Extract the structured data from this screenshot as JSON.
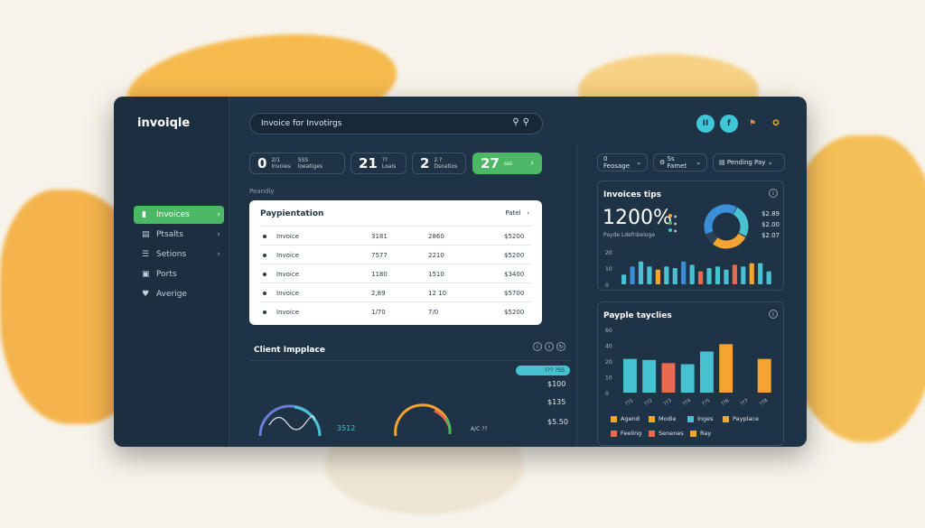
{
  "colors": {
    "accent_green": "#4cb865",
    "cyan": "#48c2d1",
    "orange": "#f6a431",
    "coral": "#ea6a4f",
    "blue": "#3b8fd8",
    "window_bg": "#1f3346"
  },
  "app": {
    "logo": "invoiqle"
  },
  "search": {
    "value": "Invoice for Invotirgs",
    "icon": "search-icon"
  },
  "header_icons": [
    "II",
    "f",
    "⚑",
    "✪"
  ],
  "sidebar": {
    "items": [
      {
        "label": "Invoices",
        "icon": "chart-icon"
      },
      {
        "label": "Ptsalts",
        "icon": "document-icon"
      },
      {
        "label": "Setions",
        "icon": "sliders-icon"
      },
      {
        "label": "Ports",
        "icon": "building-icon"
      },
      {
        "label": "Averige",
        "icon": "pin-icon"
      }
    ]
  },
  "stats": [
    {
      "num": "0",
      "label_a": "2/1",
      "label_b": "Invoies",
      "label_c": "SSS",
      "label_d": "loeatiges"
    },
    {
      "num": "21",
      "label_a": "??",
      "label_b": "Loais"
    },
    {
      "num": "2",
      "label_a": "2 ?",
      "label_b": "Dsoatios"
    },
    {
      "num": "27",
      "label_a": "sss"
    }
  ],
  "pending_label": "Peandiy",
  "table": {
    "title": "Paypientation",
    "action": "Patel",
    "rows": [
      {
        "name": "Invoice",
        "c1": "3181",
        "c2": "2860",
        "amount": "$5200"
      },
      {
        "name": "Invoice",
        "c1": "7577",
        "c2": "2210",
        "amount": "$5200"
      },
      {
        "name": "Invoice",
        "c1": "1180",
        "c2": "1510",
        "amount": "$3400"
      },
      {
        "name": "Invoice",
        "c1": "2,89",
        "c2": "12 10",
        "amount": "$5700"
      },
      {
        "name": "Invoice",
        "c1": "1/70",
        "c2": "7/0",
        "amount": "$5200"
      }
    ]
  },
  "client": {
    "title": "Client Impplace",
    "pill": "??? ?SS",
    "values": [
      "$100",
      "$135",
      "$5.50"
    ],
    "gauge1_value": "3512",
    "gauge2_value": "A/C ??"
  },
  "filters": [
    {
      "label": "0 Feosage",
      "icon": "chevron-down-icon"
    },
    {
      "label": "Ss Famet",
      "icon": "chevron-down-icon"
    },
    {
      "label": "Pending Pay",
      "icon": "chevron-down-icon"
    }
  ],
  "invoice_tips": {
    "title": "Invoices tips",
    "big": "1200%",
    "sub": "Payde Ldefnbeloge",
    "mini_legend": [
      "●",
      "●",
      "●"
    ],
    "donut_values": [
      "$2.89",
      "$2.00",
      "$2.07"
    ]
  },
  "chart_data": [
    {
      "type": "bar",
      "y_ticks": [
        "20",
        "10",
        "0"
      ],
      "values": [
        6,
        11,
        14,
        11,
        9,
        11,
        10,
        14,
        12,
        8,
        10,
        11,
        9,
        12,
        11,
        13,
        13,
        8
      ],
      "colors": [
        "#48c2d1",
        "#3b8fd8",
        "#48c2d1",
        "#48c2d1",
        "#f6a431",
        "#48c2d1",
        "#48c2d1",
        "#3b8fd8",
        "#48c2d1",
        "#ea6a4f",
        "#48c2d1",
        "#48c2d1",
        "#48c2d1",
        "#ea6a4f",
        "#48c2d1",
        "#f6a431",
        "#48c2d1",
        "#48c2d1"
      ],
      "ylim": [
        0,
        20
      ]
    },
    {
      "type": "bar",
      "title": "Payple tayclies",
      "y_ticks": [
        "60",
        "40",
        "20",
        "10",
        "0"
      ],
      "categories": [
        "??1",
        "??2",
        "??3",
        "??4",
        "??5",
        "??6",
        "??7",
        "??8"
      ],
      "values": [
        32,
        31,
        28,
        27,
        39,
        46,
        0,
        32
      ],
      "colors": [
        "#48c2d1",
        "#48c2d1",
        "#ea6a4f",
        "#48c2d1",
        "#48c2d1",
        "#f6a431",
        "#1f3346",
        "#f6a431"
      ],
      "ylim": [
        0,
        60
      ],
      "legend": [
        {
          "name": "Agend",
          "color": "#f6a431"
        },
        {
          "name": "Modie",
          "color": "#f6a431"
        },
        {
          "name": "Inges",
          "color": "#48c2d1"
        },
        {
          "name": "Payplace",
          "color": "#f6a431"
        },
        {
          "name": "Feeling",
          "color": "#ea6a4f"
        },
        {
          "name": "Senenes",
          "color": "#ea6a4f"
        },
        {
          "name": "Ray",
          "color": "#f6a431"
        }
      ]
    }
  ]
}
